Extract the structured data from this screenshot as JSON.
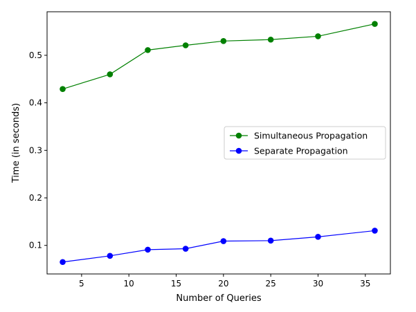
{
  "chart_data": {
    "type": "line",
    "xlabel": "Number of Queries",
    "ylabel": "Time (in seconds)",
    "xlim": [
      1.35,
      37.65
    ],
    "ylim": [
      0.0399,
      0.5916
    ],
    "xticks": [
      5,
      10,
      15,
      20,
      25,
      30,
      35
    ],
    "xtick_labels": [
      "5",
      "10",
      "15",
      "20",
      "25",
      "30",
      "35"
    ],
    "yticks": [
      0.1,
      0.2,
      0.3,
      0.4,
      0.5
    ],
    "ytick_labels": [
      "0.1",
      "0.2",
      "0.3",
      "0.4",
      "0.5"
    ],
    "legend_position": "center-right",
    "grid": false,
    "series": [
      {
        "name": "Simultaneous Propagation",
        "color": "#008000",
        "marker": "circle",
        "x": [
          3,
          8,
          12,
          16,
          20,
          25,
          30,
          36
        ],
        "values": [
          0.429,
          0.46,
          0.511,
          0.521,
          0.53,
          0.533,
          0.54,
          0.566
        ]
      },
      {
        "name": "Separate Propagation",
        "color": "#0000ff",
        "marker": "circle",
        "x": [
          3,
          8,
          12,
          16,
          20,
          25,
          30,
          36
        ],
        "values": [
          0.065,
          0.078,
          0.091,
          0.093,
          0.109,
          0.11,
          0.118,
          0.131
        ]
      }
    ]
  }
}
